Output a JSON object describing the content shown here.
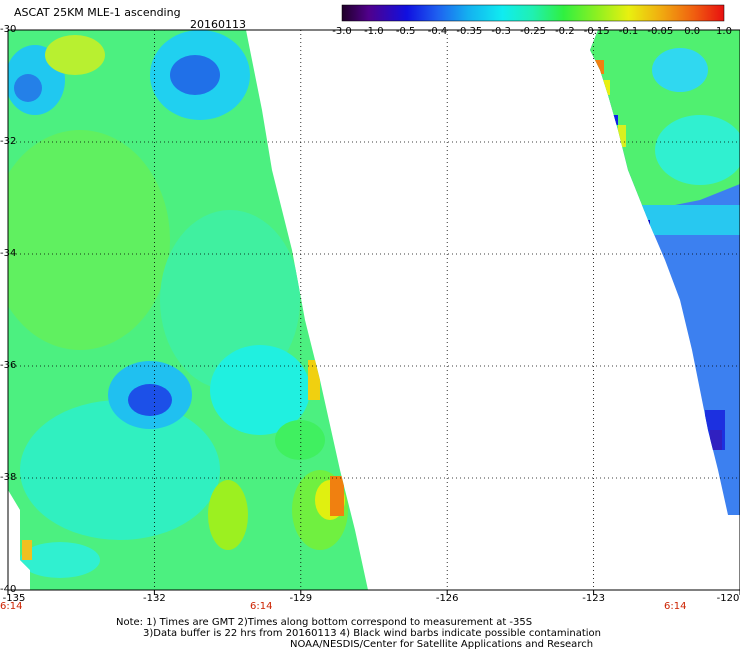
{
  "header": {
    "title": "ASCAT 25KM MLE-1 ascending",
    "date": "20160113"
  },
  "colorbar": {
    "ticks": [
      "-3.0",
      "-1.0",
      "-0.5",
      "-0.4",
      "-0.35",
      "-0.3",
      "-0.25",
      "-0.2",
      "-0.15",
      "-0.1",
      "-0.05",
      "0.0",
      "1.0"
    ],
    "colors": [
      "#2a0030",
      "#5a00a0",
      "#1a1ae0",
      "#1e6ef0",
      "#14b4f0",
      "#10ecf0",
      "#20f0a0",
      "#30f040",
      "#80f020",
      "#d8f010",
      "#f0b010",
      "#f06010",
      "#e81010"
    ]
  },
  "map": {
    "lat_ticks": [
      "-30",
      "-32",
      "-34",
      "-36",
      "-38",
      "-40"
    ],
    "lon_ticks": [
      "-135",
      "-132",
      "-129",
      "-126",
      "-123",
      "-120"
    ],
    "times": [
      "6:14",
      "6:14",
      "6:14"
    ],
    "lon_range": [
      -135,
      -120
    ],
    "lat_range": [
      -40,
      -30
    ]
  },
  "footer": {
    "line1": "Note: 1) Times are GMT 2)Times along bottom correspond to measurement at -35S",
    "line2": "3)Data buffer is 22 hrs from 20160113 4) Black wind barbs indicate possible contamination",
    "line3": "NOAA/NESDIS/Center for Satellite Applications and Research"
  }
}
